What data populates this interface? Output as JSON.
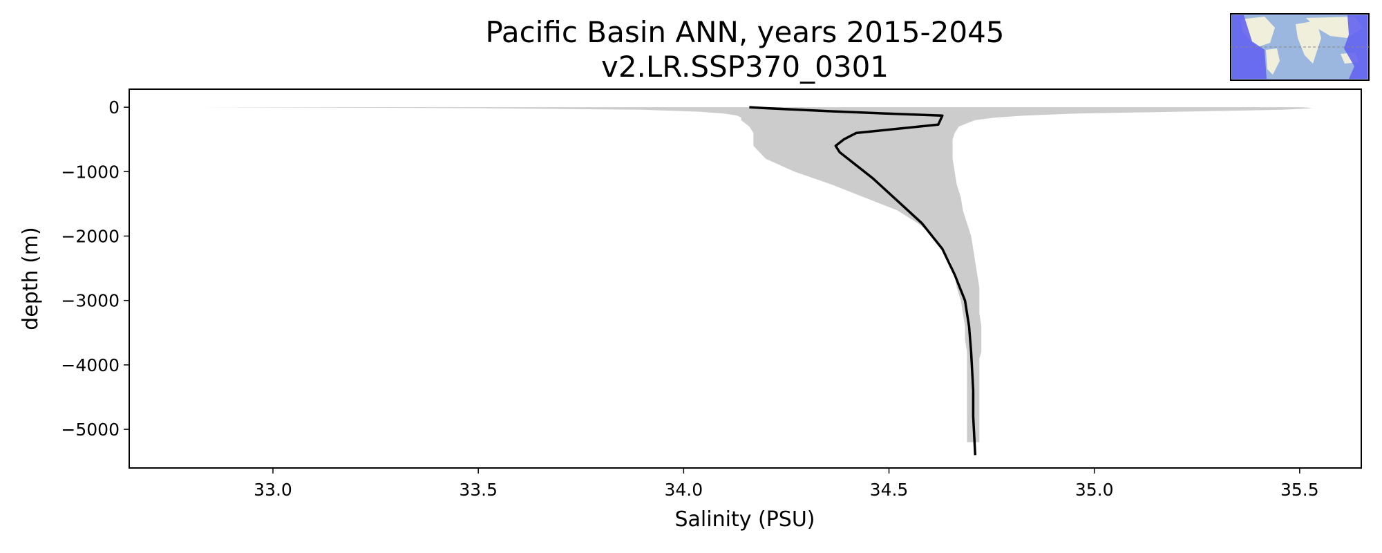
{
  "chart_data": {
    "type": "line",
    "title": "Pacific Basin ANN, years 2015-2045",
    "subtitle": "v2.LR.SSP370_0301",
    "xlabel": "Salinity (PSU)",
    "ylabel": "depth (m)",
    "xlim": [
      32.65,
      35.65
    ],
    "ylim": [
      -5600,
      280
    ],
    "xticks": [
      33.0,
      33.5,
      34.0,
      34.5,
      35.0,
      35.5
    ],
    "xtick_labels": [
      "33.0",
      "33.5",
      "34.0",
      "34.5",
      "35.0",
      "35.5"
    ],
    "yticks": [
      0,
      -1000,
      -2000,
      -3000,
      -4000,
      -5000
    ],
    "ytick_labels": [
      "0",
      "−1000",
      "−2000",
      "−3000",
      "−4000",
      "−5000"
    ],
    "grid": false,
    "colors": {
      "line": "#000000",
      "band": "#cccccc",
      "inset_ocean": "#9bb7e0",
      "inset_land": "#f0efdc",
      "inset_region": "#6464f0"
    },
    "series": [
      {
        "kind": "line",
        "x": [
          34.16,
          34.2,
          34.35,
          34.5,
          34.63,
          34.62,
          34.42,
          34.39,
          34.37,
          34.38,
          34.41,
          34.46,
          34.52,
          34.58,
          34.63,
          34.66,
          34.685,
          34.695,
          34.7,
          34.705,
          34.705,
          34.71
        ],
        "y": [
          0,
          -15,
          -60,
          -100,
          -130,
          -270,
          -400,
          -500,
          -600,
          -700,
          -850,
          -1100,
          -1450,
          -1800,
          -2200,
          -2600,
          -3000,
          -3400,
          -3800,
          -4400,
          -4800,
          -5400
        ]
      },
      {
        "kind": "band",
        "depth": [
          0,
          -5,
          -15,
          -40,
          -70,
          -100,
          -130,
          -160,
          -200,
          -250,
          -300,
          -400,
          -500,
          -600,
          -800,
          -1000,
          -1200,
          -1400,
          -1600,
          -1800,
          -2000,
          -2200,
          -2400,
          -2600,
          -2800,
          -3000,
          -3200,
          -3400,
          -3600,
          -3800,
          -3900,
          -4000,
          -4400,
          -4800,
          -5200
        ],
        "min": [
          32.82,
          33.05,
          33.5,
          33.9,
          34.04,
          34.1,
          34.13,
          34.14,
          34.14,
          34.15,
          34.16,
          34.17,
          34.17,
          34.17,
          34.2,
          34.27,
          34.36,
          34.44,
          34.52,
          34.57,
          34.61,
          34.63,
          34.65,
          34.66,
          34.665,
          34.675,
          34.68,
          34.685,
          34.685,
          34.69,
          34.69,
          34.69,
          34.69,
          34.69,
          34.69
        ],
        "max": [
          35.5,
          35.52,
          35.53,
          35.46,
          35.2,
          34.95,
          34.83,
          34.76,
          34.71,
          34.69,
          34.67,
          34.66,
          34.655,
          34.655,
          34.655,
          34.66,
          34.665,
          34.675,
          34.68,
          34.69,
          34.7,
          34.705,
          34.71,
          34.715,
          34.72,
          34.72,
          34.72,
          34.725,
          34.725,
          34.725,
          34.72,
          34.72,
          34.72,
          34.72,
          34.72
        ]
      }
    ]
  }
}
